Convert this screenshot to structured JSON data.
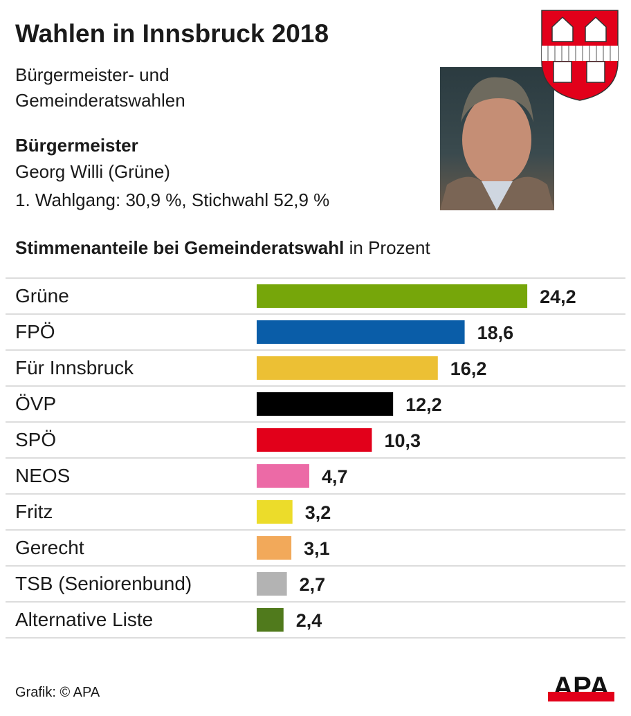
{
  "header": {
    "title": "Wahlen in Innsbruck 2018",
    "subtitle_line1": "Bürgermeister- und",
    "subtitle_line2": "Gemeinderatswahlen",
    "mayor_heading": "Bürgermeister",
    "mayor_name": "Georg Willi (Grüne)",
    "mayor_result": "1. Wahlgang: 30,9 %, Stichwahl 52,9 %"
  },
  "chart_data": {
    "type": "bar",
    "orientation": "horizontal",
    "title": "Stimmenanteile bei Gemeinderatswahl",
    "title_suffix": "in Prozent",
    "categories": [
      "Grüne",
      "FPÖ",
      "Für Innsbruck",
      "ÖVP",
      "SPÖ",
      "NEOS",
      "Fritz",
      "Gerecht",
      "TSB (Seniorenbund)",
      "Alternative Liste"
    ],
    "values": [
      24.2,
      18.6,
      16.2,
      12.2,
      10.3,
      4.7,
      3.2,
      3.1,
      2.7,
      2.4
    ],
    "value_labels": [
      "24,2",
      "18,6",
      "16,2",
      "12,2",
      "10,3",
      "4,7",
      "3,2",
      "3,1",
      "2,7",
      "2,4"
    ],
    "colors": [
      "#76a60a",
      "#0a5da8",
      "#ecc034",
      "#000000",
      "#e2001a",
      "#ec6aa6",
      "#ecdc2a",
      "#f2a95a",
      "#b3b3b3",
      "#507a1c"
    ]
  },
  "footer": {
    "credit": "Grafik: © APA",
    "logo": "APA"
  }
}
